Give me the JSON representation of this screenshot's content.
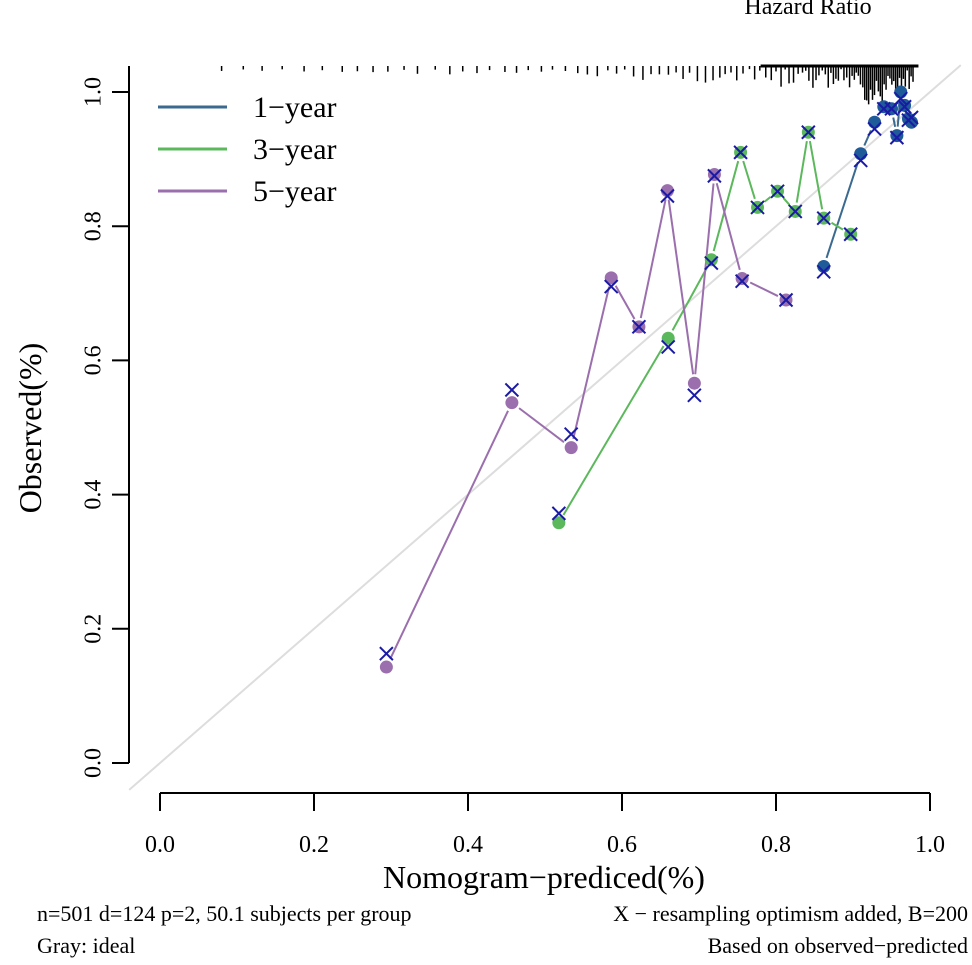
{
  "chart_data": {
    "type": "line",
    "top_label": "Hazard Ratio",
    "xlabel": "Nomogram−prediced(%)",
    "ylabel": "Observed(%)",
    "xlim": [
      -0.04,
      1.04
    ],
    "ylim": [
      -0.04,
      1.04
    ],
    "x_ticks": [
      "0.0",
      "0.2",
      "0.4",
      "0.6",
      "0.8",
      "1.0"
    ],
    "y_ticks": [
      "0.0",
      "0.2",
      "0.4",
      "0.6",
      "0.8",
      "1.0"
    ],
    "ideal_line": {
      "from": [
        -0.04,
        -0.04
      ],
      "to": [
        1.04,
        1.04
      ],
      "color": "#dddddd"
    },
    "legend": {
      "position": "top-left",
      "entries": [
        {
          "label": "1−year",
          "color": "#3b6a91"
        },
        {
          "label": "3−year",
          "color": "#5cb85c"
        },
        {
          "label": "5−year",
          "color": "#9b6fad"
        }
      ]
    },
    "series": [
      {
        "name": "1−year",
        "color": "#3b6a91",
        "marker_color": "#1f5a99",
        "x": [
          0.862,
          0.91,
          0.928,
          0.94,
          0.95,
          0.957,
          0.962,
          0.967,
          0.972,
          0.976
        ],
        "observed": [
          0.74,
          0.908,
          0.955,
          0.978,
          0.975,
          0.935,
          1.0,
          0.98,
          0.96,
          0.955
        ],
        "x_marks": [
          0.732,
          0.898,
          0.945,
          0.975,
          0.975,
          0.932,
          0.99,
          0.978,
          0.958,
          0.962
        ]
      },
      {
        "name": "3−year",
        "color": "#5cb85c",
        "marker_color": "#5cb85c",
        "x": [
          0.518,
          0.66,
          0.716,
          0.754,
          0.776,
          0.802,
          0.825,
          0.842,
          0.862,
          0.897
        ],
        "observed": [
          0.358,
          0.633,
          0.75,
          0.91,
          0.828,
          0.852,
          0.822,
          0.94,
          0.812,
          0.788
        ],
        "x_marks": [
          0.372,
          0.62,
          0.745,
          0.91,
          0.828,
          0.852,
          0.822,
          0.94,
          0.812,
          0.788
        ]
      },
      {
        "name": "5−year",
        "color": "#9b6fad",
        "marker_color": "#9b6fad",
        "x": [
          0.294,
          0.457,
          0.534,
          0.586,
          0.622,
          0.659,
          0.694,
          0.72,
          0.756,
          0.813
        ],
        "observed": [
          0.143,
          0.537,
          0.47,
          0.723,
          0.65,
          0.853,
          0.566,
          0.877,
          0.722,
          0.69
        ],
        "x_marks": [
          0.163,
          0.556,
          0.49,
          0.71,
          0.65,
          0.845,
          0.548,
          0.875,
          0.718,
          0.69
        ]
      }
    ],
    "rug": {
      "description": "distribution of predicted values",
      "x_min": 0.08,
      "x_max": 0.98
    },
    "footer": {
      "left_line1": "n=501 d=124 p=2, 50.1 subjects per group",
      "right_line1": "X − resampling optimism added, B=200",
      "left_line2": "Gray: ideal",
      "right_line2": "Based on observed−predicted"
    }
  }
}
